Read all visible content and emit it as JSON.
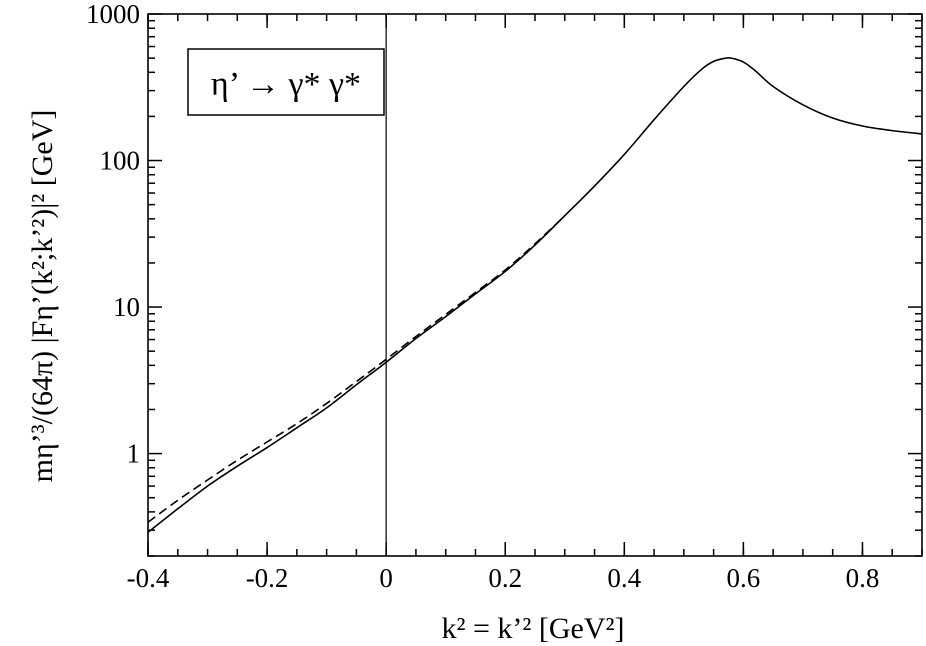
{
  "chart_data": {
    "type": "line",
    "xlim": [
      -0.4,
      0.9
    ],
    "ylim": [
      0.2,
      1000
    ],
    "yscale": "log",
    "grid": false,
    "annotation": {
      "text": "η’ → γ* γ*",
      "placement": "top-left"
    },
    "xlabel": "k² = k’²  [GeV²]",
    "ylabel": "mη’³/(64π) |Fη’(k²;k’²)|²  [GeV]",
    "x_ticks": [
      {
        "value": -0.4,
        "label": "-0.4"
      },
      {
        "value": -0.2,
        "label": "-0.2"
      },
      {
        "value": 0,
        "label": "0"
      },
      {
        "value": 0.2,
        "label": "0.2"
      },
      {
        "value": 0.4,
        "label": "0.4"
      },
      {
        "value": 0.6,
        "label": "0.6"
      },
      {
        "value": 0.8,
        "label": "0.8"
      }
    ],
    "y_ticks": [
      {
        "value": 1,
        "label": "1"
      },
      {
        "value": 10,
        "label": "10"
      },
      {
        "value": 100,
        "label": "100"
      },
      {
        "value": 1000,
        "label": "1000"
      }
    ],
    "x_minor_step": 0.05,
    "reference_lines": [
      {
        "orientation": "vertical",
        "x": 0
      }
    ],
    "series": [
      {
        "style": "solid",
        "x": [
          -0.4,
          -0.35,
          -0.3,
          -0.25,
          -0.2,
          -0.15,
          -0.1,
          -0.05,
          0,
          0.05,
          0.1,
          0.15,
          0.2,
          0.25,
          0.3,
          0.35,
          0.4,
          0.45,
          0.5,
          0.53,
          0.55,
          0.57,
          0.58,
          0.6,
          0.62,
          0.65,
          0.7,
          0.75,
          0.8,
          0.85,
          0.9
        ],
        "y": [
          0.29,
          0.42,
          0.6,
          0.82,
          1.1,
          1.5,
          2.05,
          2.95,
          4.2,
          6.1,
          8.6,
          12.3,
          17.5,
          26.5,
          42,
          67,
          110,
          190,
          320,
          420,
          475,
          500,
          500,
          470,
          410,
          320,
          240,
          195,
          172,
          160,
          152
        ]
      },
      {
        "style": "dashed",
        "x": [
          -0.4,
          -0.35,
          -0.3,
          -0.25,
          -0.2,
          -0.15,
          -0.1,
          -0.05,
          0,
          0.05,
          0.1,
          0.15,
          0.2,
          0.25,
          0.3
        ],
        "y": [
          0.34,
          0.48,
          0.66,
          0.9,
          1.2,
          1.6,
          2.2,
          3.1,
          4.4,
          6.3,
          8.9,
          12.6,
          17.9,
          27,
          42
        ]
      }
    ]
  }
}
